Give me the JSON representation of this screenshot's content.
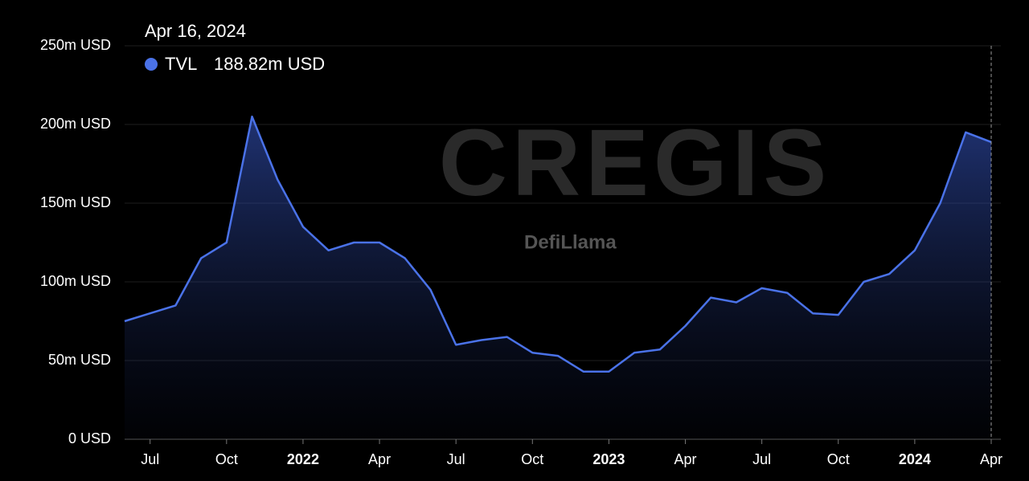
{
  "chart_data": {
    "type": "area",
    "x": [
      "2021-06",
      "2021-07",
      "2021-08",
      "2021-09",
      "2021-10",
      "2021-11",
      "2021-12",
      "2022-01",
      "2022-02",
      "2022-03",
      "2022-04",
      "2022-05",
      "2022-06",
      "2022-07",
      "2022-08",
      "2022-09",
      "2022-10",
      "2022-11",
      "2022-12",
      "2023-01",
      "2023-02",
      "2023-03",
      "2023-04",
      "2023-05",
      "2023-06",
      "2023-07",
      "2023-08",
      "2023-09",
      "2023-10",
      "2023-11",
      "2023-12",
      "2024-01",
      "2024-02",
      "2024-03",
      "2024-04"
    ],
    "series": [
      {
        "name": "TVL",
        "color": "#4a72e8",
        "values": [
          75,
          80,
          85,
          115,
          125,
          205,
          165,
          135,
          120,
          125,
          125,
          115,
          95,
          60,
          63,
          65,
          55,
          53,
          43,
          43,
          55,
          57,
          72,
          90,
          87,
          96,
          93,
          80,
          79,
          100,
          105,
          120,
          150,
          195,
          188.82
        ],
        "value_labels": [
          null,
          null,
          null,
          null,
          null,
          null,
          null,
          null,
          null,
          null,
          null,
          null,
          null,
          null,
          null,
          null,
          null,
          null,
          null,
          null,
          null,
          null,
          null,
          null,
          null,
          null,
          null,
          null,
          null,
          null,
          null,
          null,
          null,
          null,
          "188.82m USD"
        ]
      }
    ],
    "tooltip_date": "Apr 16, 2024",
    "xlim": [
      "2021-06",
      "2024-04"
    ],
    "xticks": [
      {
        "value": "2021-07",
        "label": "Jul"
      },
      {
        "value": "2021-10",
        "label": "Oct"
      },
      {
        "value": "2022-01",
        "label": "2022"
      },
      {
        "value": "2022-04",
        "label": "Apr"
      },
      {
        "value": "2022-07",
        "label": "Jul"
      },
      {
        "value": "2022-10",
        "label": "Oct"
      },
      {
        "value": "2023-01",
        "label": "2023"
      },
      {
        "value": "2023-04",
        "label": "Apr"
      },
      {
        "value": "2023-07",
        "label": "Jul"
      },
      {
        "value": "2023-10",
        "label": "Oct"
      },
      {
        "value": "2024-01",
        "label": "2024"
      },
      {
        "value": "2024-04",
        "label": "Apr"
      }
    ],
    "ylim": [
      0,
      250
    ],
    "yticks": [
      {
        "value": 0,
        "label": "0 USD"
      },
      {
        "value": 50,
        "label": "50m USD"
      },
      {
        "value": 100,
        "label": "100m USD"
      },
      {
        "value": 150,
        "label": "150m USD"
      },
      {
        "value": 200,
        "label": "200m USD"
      },
      {
        "value": 250,
        "label": "250m USD"
      }
    ],
    "grid": true,
    "watermarks": [
      "CREGIS",
      "DefiLlama"
    ]
  }
}
